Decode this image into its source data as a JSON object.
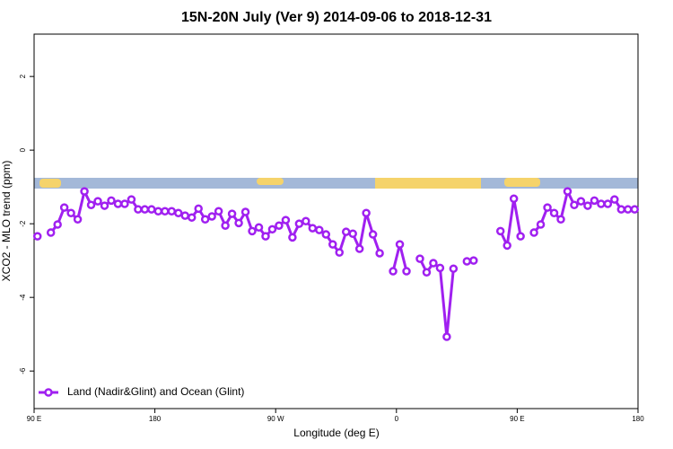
{
  "chart_data": {
    "type": "line",
    "title": "15N-20N July (Ver 9)   2014-09-06 to 2018-12-31",
    "x_label": "Longitude (deg E)",
    "y_label": "XCO2 - MLO trend (ppm)",
    "xlim": [
      90,
      540
    ],
    "ylim": [
      -7.02,
      3.15
    ],
    "xticks": [
      {
        "value": 90,
        "label": "90 E"
      },
      180,
      {
        "value": 270,
        "label": "90 W"
      },
      {
        "value": 360,
        "label": "0"
      },
      {
        "value": 450,
        "label": "90 E"
      },
      {
        "value": 540,
        "label": "180"
      }
    ],
    "yticks": [
      2,
      0,
      -2,
      -4,
      -6
    ],
    "legend_position": "bottom-left",
    "x": [
      92.5,
      97.5,
      102.5,
      107.5,
      112.5,
      117.5,
      122.5,
      127.5,
      132.5,
      137.5,
      142.5,
      147.5,
      152.5,
      157.5,
      162.5,
      167.5,
      172.5,
      177.5,
      182.5,
      187.5,
      192.5,
      197.5,
      202.5,
      207.5,
      212.5,
      217.5,
      222.5,
      227.5,
      232.5,
      237.5,
      242.5,
      247.5,
      252.5,
      257.5,
      262.5,
      267.5,
      272.5,
      277.5,
      282.5,
      287.5,
      292.5,
      297.5,
      302.5,
      307.5,
      312.5,
      317.5,
      322.5,
      327.5,
      332.5,
      337.5,
      342.5,
      347.5,
      352.5,
      357.5,
      362.5,
      367.5,
      372.5,
      377.5,
      382.5,
      387.5,
      392.5,
      397.5,
      402.5,
      407.5,
      412.5,
      417.5,
      422.5,
      427.5,
      432.5,
      437.5,
      442.5,
      447.5,
      452.5,
      457.5,
      462.5,
      467.5,
      472.5,
      477.5,
      482.5,
      487.5,
      492.5,
      497.5,
      502.5,
      507.5,
      512.5,
      517.5,
      522.5,
      527.5,
      532.5,
      537.5
    ],
    "series": [
      {
        "name": "Land (Nadir&Glint) and Ocean (Glint)",
        "color": "#a020f0",
        "values": [
          -2.34,
          null,
          -2.24,
          -2.02,
          -1.56,
          -1.71,
          -1.88,
          -1.12,
          -1.49,
          -1.39,
          -1.51,
          -1.37,
          -1.46,
          -1.46,
          -1.34,
          -1.61,
          -1.61,
          -1.61,
          -1.66,
          -1.66,
          -1.66,
          -1.71,
          -1.78,
          -1.83,
          -1.59,
          -1.88,
          -1.8,
          -1.66,
          -2.05,
          -1.73,
          -1.98,
          -1.68,
          -2.2,
          -2.1,
          -2.34,
          -2.15,
          -2.05,
          -1.9,
          -2.37,
          -2.0,
          -1.93,
          -2.12,
          -2.17,
          -2.29,
          -2.56,
          -2.78,
          -2.22,
          -2.27,
          -2.68,
          -1.71,
          -2.29,
          -2.8,
          null,
          -3.29,
          -2.56,
          -3.29,
          null,
          -2.95,
          -3.32,
          -3.07,
          -3.2,
          -5.07,
          -3.22,
          null,
          -3.02,
          -3.0,
          null,
          null,
          null,
          -2.2,
          -2.59,
          -1.32,
          -2.34,
          null,
          -2.24,
          -2.02,
          -1.56,
          -1.71,
          -1.88,
          -1.12,
          -1.49,
          -1.39,
          -1.51,
          -1.37,
          -1.46,
          -1.46,
          -1.34,
          -1.61,
          -1.61,
          -1.61
        ]
      }
    ]
  }
}
